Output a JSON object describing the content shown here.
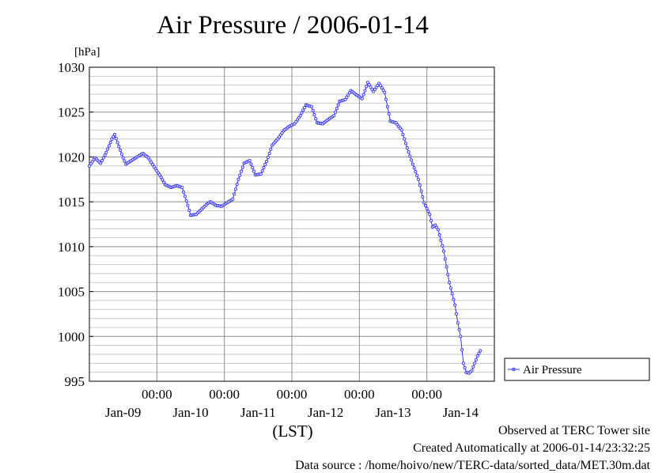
{
  "page": {
    "title": "Air Pressure / 2006-01-14",
    "x_unit_label": "(LST)",
    "footer": {
      "observed": "Observed at TERC Tower site",
      "created": "Created Automatically at 2006-01-14/23:32:25",
      "source": "Data source : /home/hoivo/new/TERC-data/sorted_data/MET.30m.dat"
    }
  },
  "chart_data": {
    "type": "line",
    "title": "Air Pressure / 2006-01-14",
    "ylabel": "[hPa]",
    "xlabel": "(LST)",
    "ylim": [
      995,
      1030
    ],
    "yticks": [
      "995",
      "1000",
      "1005",
      "1010",
      "1015",
      "1020",
      "1025",
      "1030"
    ],
    "xlim": [
      0,
      144
    ],
    "xticks": [
      {
        "x": 24,
        "time": "00:00",
        "date": "Jan-09"
      },
      {
        "x": 48,
        "time": "00:00",
        "date": "Jan-10"
      },
      {
        "x": 72,
        "time": "00:00",
        "date": "Jan-11"
      },
      {
        "x": 96,
        "time": "00:00",
        "date": "Jan-12"
      },
      {
        "x": 120,
        "time": "00:00",
        "date": "Jan-13"
      }
    ],
    "date_labels": [
      "Jan-09",
      "Jan-10",
      "Jan-11",
      "Jan-12",
      "Jan-13",
      "Jan-14"
    ],
    "grid": true,
    "legend_position": "right",
    "colors": {
      "series": "#3333ff"
    },
    "series": [
      {
        "name": "Air Pressure",
        "points": [
          [
            0,
            1019.0
          ],
          [
            2,
            1019.9
          ],
          [
            4,
            1019.3
          ],
          [
            6,
            1020.5
          ],
          [
            8,
            1022.0
          ],
          [
            9,
            1022.5
          ],
          [
            10,
            1021.6
          ],
          [
            12,
            1019.9
          ],
          [
            13,
            1019.2
          ],
          [
            15,
            1019.6
          ],
          [
            17,
            1020.0
          ],
          [
            19,
            1020.4
          ],
          [
            21,
            1019.9
          ],
          [
            23,
            1018.9
          ],
          [
            25,
            1018.0
          ],
          [
            27,
            1016.9
          ],
          [
            29,
            1016.6
          ],
          [
            31,
            1016.8
          ],
          [
            33,
            1016.6
          ],
          [
            35,
            1014.6
          ],
          [
            36,
            1013.5
          ],
          [
            38,
            1013.6
          ],
          [
            40,
            1014.2
          ],
          [
            42,
            1014.8
          ],
          [
            43,
            1015.0
          ],
          [
            45,
            1014.6
          ],
          [
            47,
            1014.5
          ],
          [
            49,
            1014.9
          ],
          [
            51,
            1015.3
          ],
          [
            53,
            1017.5
          ],
          [
            55,
            1019.3
          ],
          [
            57,
            1019.6
          ],
          [
            59,
            1018.0
          ],
          [
            61,
            1018.1
          ],
          [
            63,
            1019.5
          ],
          [
            65,
            1021.3
          ],
          [
            67,
            1022.0
          ],
          [
            69,
            1022.9
          ],
          [
            71,
            1023.4
          ],
          [
            73,
            1023.7
          ],
          [
            75,
            1024.6
          ],
          [
            77,
            1025.8
          ],
          [
            79,
            1025.6
          ],
          [
            81,
            1023.8
          ],
          [
            83,
            1023.7
          ],
          [
            85,
            1024.2
          ],
          [
            87,
            1024.6
          ],
          [
            89,
            1026.2
          ],
          [
            91,
            1026.4
          ],
          [
            93,
            1027.4
          ],
          [
            95,
            1026.9
          ],
          [
            97,
            1026.5
          ],
          [
            99,
            1028.3
          ],
          [
            101,
            1027.3
          ],
          [
            103,
            1028.2
          ],
          [
            105,
            1027.2
          ],
          [
            107,
            1024.0
          ],
          [
            109,
            1023.8
          ],
          [
            111,
            1023.0
          ],
          [
            113,
            1021.0
          ],
          [
            115,
            1019.2
          ],
          [
            117,
            1017.5
          ],
          [
            119,
            1014.9
          ],
          [
            121,
            1013.6
          ],
          [
            122,
            1012.2
          ],
          [
            123,
            1012.4
          ],
          [
            124,
            1011.9
          ],
          [
            126,
            1009.5
          ],
          [
            128,
            1006.0
          ],
          [
            130,
            1003.5
          ],
          [
            131,
            1001.5
          ],
          [
            132,
            1000.0
          ],
          [
            133,
            997.0
          ],
          [
            134,
            996.0
          ],
          [
            135,
            995.9
          ],
          [
            136,
            996.2
          ],
          [
            137,
            997.0
          ],
          [
            138,
            997.8
          ],
          [
            139,
            998.4
          ]
        ]
      }
    ]
  }
}
